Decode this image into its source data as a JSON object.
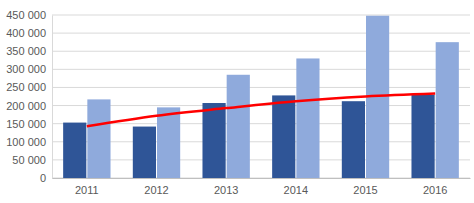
{
  "chart_data": {
    "type": "bar",
    "categories": [
      "2011",
      "2012",
      "2013",
      "2014",
      "2015",
      "2016"
    ],
    "series": [
      {
        "color": "#2f5597",
        "values": [
          153000,
          142000,
          207000,
          228000,
          212000,
          230000
        ]
      },
      {
        "color": "#8faadc",
        "values": [
          217000,
          195000,
          285000,
          330000,
          448000,
          375000
        ]
      },
      {
        "type": "line",
        "color": "#ff0000",
        "values": [
          143000,
          172000,
          193000,
          212000,
          225000,
          233000
        ]
      }
    ],
    "ylim": [
      0,
      450000
    ],
    "yticks": [
      0,
      {
        "value": 50000,
        "label": "50 000"
      },
      {
        "value": 100000,
        "label": "100 000"
      },
      {
        "value": 150000,
        "label": "150 000"
      },
      {
        "value": 200000,
        "label": "200 000"
      },
      {
        "value": 250000,
        "label": "250 000"
      },
      {
        "value": 300000,
        "label": "300 000"
      },
      {
        "value": 350000,
        "label": "350 000"
      },
      {
        "value": 400000,
        "label": "400 000"
      },
      {
        "value": 450000,
        "label": "450 000"
      }
    ],
    "grid": true
  }
}
